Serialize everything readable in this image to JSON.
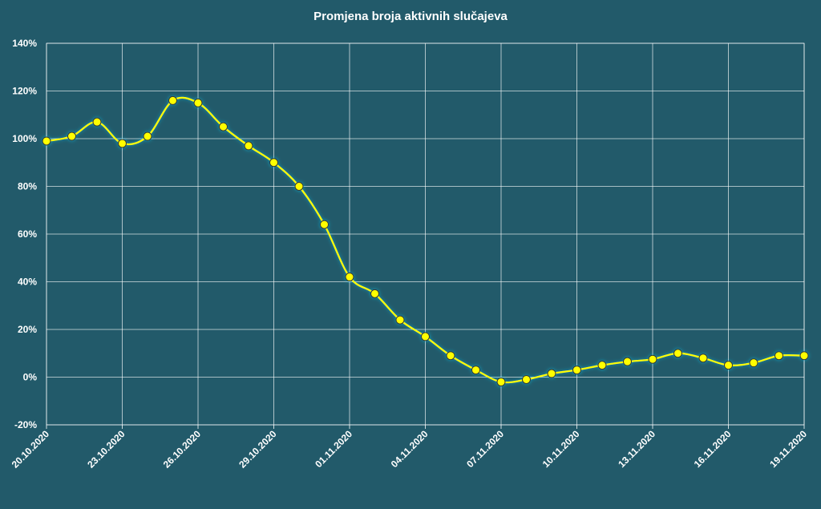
{
  "chart_data": {
    "type": "line",
    "title": "Promjena broja aktivnih slučajeva",
    "xlabel": "",
    "ylabel": "",
    "ylim": [
      -20,
      140
    ],
    "y_ticks": [
      -20,
      0,
      20,
      40,
      60,
      80,
      100,
      120,
      140
    ],
    "y_tick_labels": [
      "-20%",
      "0%",
      "20%",
      "40%",
      "60%",
      "80%",
      "100%",
      "120%",
      "140%"
    ],
    "x": [
      "20.10.2020",
      "21.10.2020",
      "22.10.2020",
      "23.10.2020",
      "24.10.2020",
      "25.10.2020",
      "26.10.2020",
      "27.10.2020",
      "28.10.2020",
      "29.10.2020",
      "30.10.2020",
      "31.10.2020",
      "01.11.2020",
      "02.11.2020",
      "03.11.2020",
      "04.11.2020",
      "05.11.2020",
      "06.11.2020",
      "07.11.2020",
      "08.11.2020",
      "09.11.2020",
      "10.11.2020",
      "11.11.2020",
      "12.11.2020",
      "13.11.2020",
      "14.11.2020",
      "15.11.2020",
      "16.11.2020",
      "17.11.2020",
      "18.11.2020",
      "19.11.2020"
    ],
    "x_tick_labels": [
      "20.10.2020",
      "23.10.2020",
      "26.10.2020",
      "29.10.2020",
      "01.11.2020",
      "04.11.2020",
      "07.11.2020",
      "10.11.2020",
      "13.11.2020",
      "16.11.2020",
      "19.11.2020"
    ],
    "series": [
      {
        "values": [
          99,
          101,
          107,
          98,
          101,
          116,
          115,
          105,
          97,
          90,
          80,
          64,
          42,
          35,
          24,
          17,
          9,
          3,
          -2,
          -1,
          1.5,
          3,
          5,
          6.5,
          7.5,
          10,
          8,
          5,
          6,
          9,
          9
        ]
      }
    ],
    "grid": true,
    "colors": {
      "background": "#225a6a",
      "line": "#ffff00",
      "marker_fill": "#ffff00",
      "marker_stroke": "#333333",
      "grid": "#ffffff"
    }
  }
}
